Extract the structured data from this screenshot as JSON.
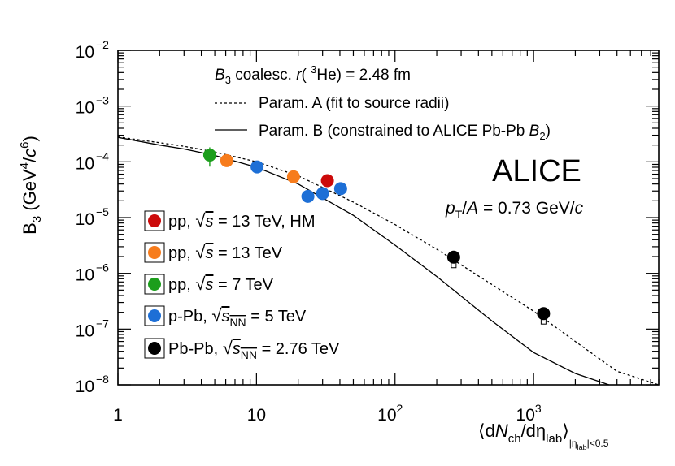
{
  "chart_data": {
    "type": "scatter",
    "experiment": "ALICE",
    "xaxis": {
      "scale": "log",
      "lim": [
        1,
        8000
      ],
      "label": "⟨dN_ch/dη_lab⟩_|η_lab|<0.5",
      "label_parts": [
        "⟨d",
        "N",
        "ch",
        "/dη",
        "lab",
        "⟩",
        "|η",
        "lab",
        "|<0.5"
      ],
      "ticks": [
        {
          "base": "1",
          "exp": ""
        },
        {
          "base": "10",
          "exp": ""
        },
        {
          "base": "10",
          "exp": "2"
        },
        {
          "base": "10",
          "exp": "3"
        }
      ]
    },
    "yaxis": {
      "scale": "log",
      "lim": [
        1e-08,
        0.01
      ],
      "label": "B3 (GeV^4/c^6)",
      "label_parts": [
        "B",
        "3",
        " (GeV",
        "4",
        "/",
        "c",
        "6",
        ")"
      ],
      "ticks": [
        {
          "base": "10",
          "exp": "−8"
        },
        {
          "base": "10",
          "exp": "−7"
        },
        {
          "base": "10",
          "exp": "−6"
        },
        {
          "base": "10",
          "exp": "−5"
        },
        {
          "base": "10",
          "exp": "−4"
        },
        {
          "base": "10",
          "exp": "−3"
        },
        {
          "base": "10",
          "exp": "−2"
        }
      ]
    },
    "header": {
      "line1_parts": [
        "B",
        "3",
        " coalesc. ",
        "r",
        "( ",
        "3",
        "He) = 2.48 fm"
      ],
      "paramA": "Param. A (fit to source radii)",
      "paramB_parts": [
        "Param. B (constrained to ALICE Pb-Pb ",
        "B",
        "2",
        ")"
      ]
    },
    "logo": "ALICE",
    "kinematics_parts": [
      "p",
      "T",
      "/",
      "A",
      " = 0.73 GeV/",
      "c"
    ],
    "series": [
      {
        "name": "pp, √s = 13 TeV, HM",
        "label_parts": [
          "pp, ",
          "s",
          " = 13 TeV, HM"
        ],
        "color": "#cc0a0a",
        "x": [
          32.5
        ],
        "y": [
          4.6e-05
        ],
        "yerr": [
          3e-06
        ]
      },
      {
        "name": "pp, √s = 13 TeV",
        "label_parts": [
          "pp, ",
          "s",
          " = 13 TeV"
        ],
        "color": "#f77c1c",
        "x": [
          6.1,
          18.5
        ],
        "y": [
          0.000105,
          5.4e-05
        ],
        "yerr": [
          1e-05,
          4e-06
        ]
      },
      {
        "name": "pp, √s = 7 TeV",
        "label_parts": [
          "pp, ",
          "s",
          " = 7 TeV"
        ],
        "color": "#1c9e1c",
        "x": [
          4.6
        ],
        "y": [
          0.000132
        ],
        "yerr": [
          5e-05
        ]
      },
      {
        "name": "p-Pb, √sNN = 5 TeV",
        "label_parts": [
          "p-Pb, ",
          "s",
          "NN",
          " = 5 TeV"
        ],
        "color": "#1d6fd6",
        "x": [
          10.1,
          23.5,
          30.0,
          40.5
        ],
        "y": [
          8.1e-05,
          2.4e-05,
          2.7e-05,
          3.3e-05
        ],
        "yerr": [
          5e-06,
          2e-06,
          2e-06,
          3e-06
        ]
      },
      {
        "name": "Pb-Pb, √sNN = 2.76 TeV",
        "label_parts": [
          "Pb-Pb, ",
          "s",
          "NN",
          " = 2.76 TeV"
        ],
        "color": "#000000",
        "x": [
          265,
          1180
        ],
        "y": [
          1.95e-06,
          1.9e-07
        ],
        "yerr": [
          3.5e-07,
          3e-08
        ]
      }
    ],
    "curves": [
      {
        "name": "Param. A",
        "style": "dashed",
        "x": [
          1,
          2,
          3,
          5,
          10,
          20,
          50,
          100,
          200,
          500,
          1000,
          2000,
          4000,
          8000
        ],
        "y": [
          0.00028,
          0.00022,
          0.00019,
          0.00015,
          0.0001,
          5.6e-05,
          1.9e-05,
          7.5e-06,
          2.7e-06,
          6.3e-07,
          2.1e-07,
          6e-08,
          1.75e-08,
          1e-08
        ]
      },
      {
        "name": "Param. B",
        "style": "solid",
        "x": [
          1,
          2,
          3,
          5,
          10,
          20,
          50,
          100,
          200,
          500,
          1000,
          2000,
          3500
        ],
        "y": [
          0.000275,
          0.0002,
          0.00017,
          0.00013,
          8e-05,
          4e-05,
          1.1e-05,
          3.2e-06,
          8.8e-07,
          1.4e-07,
          3.8e-08,
          1.6e-08,
          1e-08
        ]
      }
    ]
  }
}
